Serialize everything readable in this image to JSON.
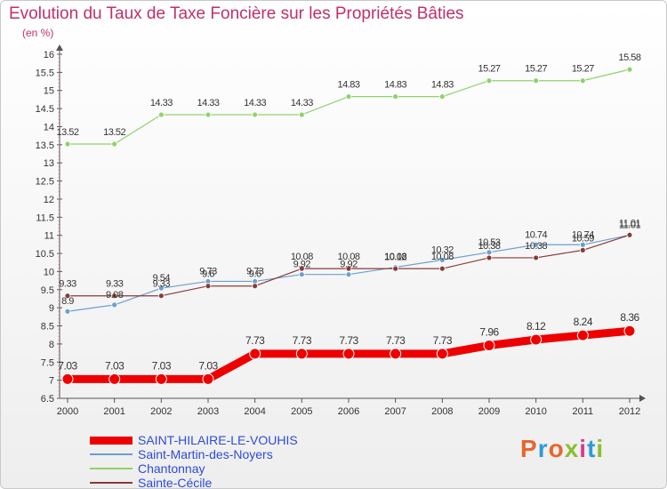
{
  "header": {
    "title": "Evolution du Taux de Taxe Foncière sur les Propriétés Bâties",
    "unit": "(en %)"
  },
  "logo": {
    "text": "Proxiti",
    "colors": [
      "#e9662c",
      "#2d9bd8",
      "#e9662c",
      "#8bbf2f",
      "#d93d8a",
      "#2d9bd8",
      "#8bbf2f"
    ]
  },
  "chart_data": {
    "type": "line",
    "title": "Evolution du Taux de Taxe Foncière sur les Propriétés Bâties",
    "ylabel": "(en %)",
    "xlabel": "",
    "x": [
      "2000",
      "2001",
      "2002",
      "2003",
      "2004",
      "2005",
      "2006",
      "2007",
      "2008",
      "2009",
      "2010",
      "2011",
      "2012"
    ],
    "ylim": [
      6.5,
      16
    ],
    "yticks": [
      "6.5",
      "7",
      "7.5",
      "8",
      "8.5",
      "9",
      "9.5",
      "10",
      "10.5",
      "11",
      "11.5",
      "12",
      "12.5",
      "13",
      "13.5",
      "14",
      "14.5",
      "15",
      "15.5",
      "16"
    ],
    "grid": false,
    "legend_position": "bottom-left",
    "series": [
      {
        "name": "SAINT-HILAIRE-LE-VOUHIS",
        "color": "#ee0000",
        "values": [
          7.03,
          7.03,
          7.03,
          7.03,
          7.73,
          7.73,
          7.73,
          7.73,
          7.73,
          7.96,
          8.12,
          8.24,
          8.36
        ],
        "labels": [
          "7.03",
          "7.03",
          "7.03",
          "7.03",
          "7.73",
          "7.73",
          "7.73",
          "7.73",
          "7.73",
          "7.96",
          "8.12",
          "8.24",
          "8.36"
        ]
      },
      {
        "name": "Saint-Martin-des-Noyers",
        "color": "#6b9fd0",
        "values": [
          8.9,
          9.08,
          9.54,
          9.73,
          9.73,
          9.92,
          9.92,
          10.12,
          10.32,
          10.53,
          10.74,
          10.74,
          11.01
        ],
        "labels": [
          "8.9",
          "9.08",
          "9.54",
          "9.73",
          "9.73",
          "9.92",
          "9.92",
          "10.12",
          "10.32",
          "10.53",
          "10.74",
          "10.74",
          "11.01"
        ]
      },
      {
        "name": "Chantonnay",
        "color": "#8fd26b",
        "values": [
          13.52,
          13.52,
          14.33,
          14.33,
          14.33,
          14.33,
          14.83,
          14.83,
          14.83,
          15.27,
          15.27,
          15.27,
          15.58
        ],
        "labels": [
          "13.52",
          "13.52",
          "14.33",
          "14.33",
          "14.33",
          "14.33",
          "14.83",
          "14.83",
          "14.83",
          "15.27",
          "15.27",
          "15.27",
          "15.58"
        ]
      },
      {
        "name": "Sainte-Cécile",
        "color": "#8a3a3a",
        "values": [
          9.33,
          9.33,
          9.33,
          9.6,
          9.6,
          10.08,
          10.08,
          10.08,
          10.08,
          10.38,
          10.38,
          10.59,
          11.01
        ],
        "labels": [
          "9.33",
          "9.33",
          "9.33",
          "9.6",
          "9.6",
          "10.08",
          "10.08",
          "10.08",
          "10.08",
          "10.38",
          "10.38",
          "10.59",
          "11.01"
        ]
      }
    ]
  }
}
